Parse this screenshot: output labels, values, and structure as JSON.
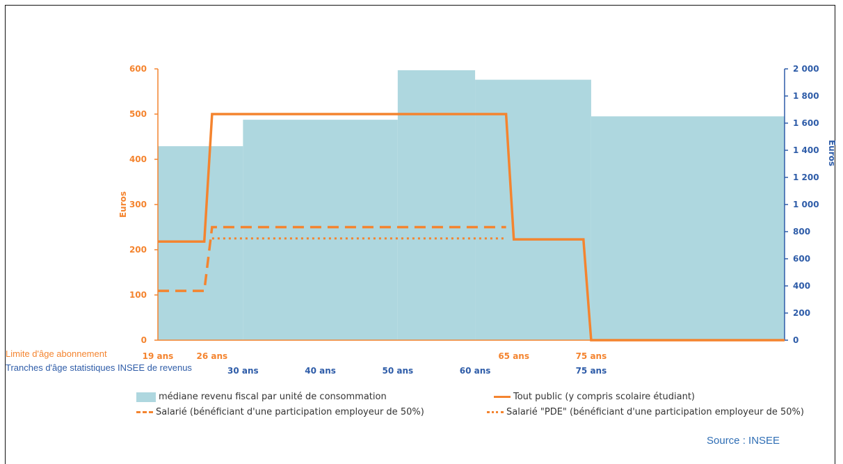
{
  "colors": {
    "orange": "#F4842F",
    "blue_axis": "#2E5CA8",
    "area_fill": "#AED7DF",
    "source_blue": "#2E6DB4"
  },
  "row_labels": {
    "subscription_age": "Limite d'âge abonnement",
    "insee_brackets": "Tranches d'âge statistiques INSEE de revenus"
  },
  "source": "Source : INSEE",
  "chart_data": {
    "type": "line",
    "y_left": {
      "label": "Euros",
      "ticks": [
        "0",
        "100",
        "200",
        "300",
        "400",
        "500",
        "600"
      ],
      "range": [
        0,
        600
      ],
      "color": "#F4842F"
    },
    "y_right": {
      "label": "Euros",
      "ticks": [
        "0",
        "200",
        "400",
        "600",
        "800",
        "1 000",
        "1 200",
        "1 400",
        "1 600",
        "1 800",
        "2 000"
      ],
      "range": [
        0,
        2000
      ],
      "color": "#2E5CA8"
    },
    "x_range": [
      19,
      100
    ],
    "x_labels_orange": [
      {
        "age": 19,
        "label": "19 ans"
      },
      {
        "age": 26,
        "label": "26 ans"
      },
      {
        "age": 65,
        "label": "65 ans"
      },
      {
        "age": 75,
        "label": "75 ans"
      }
    ],
    "x_labels_blue": [
      {
        "age": 30,
        "label": "30 ans"
      },
      {
        "age": 40,
        "label": "40 ans"
      },
      {
        "age": 50,
        "label": "50 ans"
      },
      {
        "age": 60,
        "label": "60 ans"
      },
      {
        "age": 75,
        "label": "75 ans"
      }
    ],
    "area_series": {
      "name": "médiane revenu fiscal par unité de consommation",
      "axis": "right",
      "steps": [
        {
          "from": 19,
          "to": 30,
          "value": 1430
        },
        {
          "from": 30,
          "to": 50,
          "value": 1625
        },
        {
          "from": 50,
          "to": 60,
          "value": 1990
        },
        {
          "from": 60,
          "to": 75,
          "value": 1920
        },
        {
          "from": 75,
          "to": 100,
          "value": 1650
        }
      ]
    },
    "series": [
      {
        "name": "Tout public (y compris scolaire étudiant)",
        "style": "solid",
        "points": [
          [
            19,
            218
          ],
          [
            25,
            218
          ],
          [
            26,
            500
          ],
          [
            64,
            500
          ],
          [
            65,
            223
          ],
          [
            74,
            223
          ],
          [
            75,
            0
          ],
          [
            100,
            0
          ]
        ]
      },
      {
        "name": "Salarié (bénéficiant d'une participation employeur de 50%)",
        "style": "dashed",
        "points": [
          [
            19,
            109
          ],
          [
            25,
            109
          ],
          [
            26,
            250
          ],
          [
            64,
            250
          ]
        ]
      },
      {
        "name": "Salarié \"PDE\" (bénéficiant d'une participation employeur de 50%)",
        "style": "dotted",
        "points": [
          [
            26,
            225
          ],
          [
            64,
            225
          ]
        ]
      }
    ],
    "legend_position": "bottom",
    "grid": false
  }
}
